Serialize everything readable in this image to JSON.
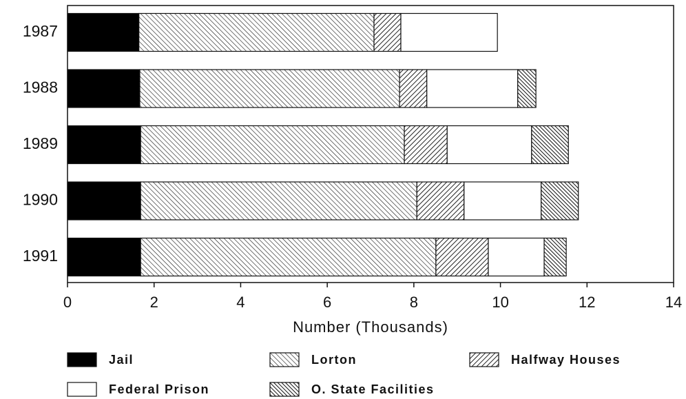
{
  "chart_data": {
    "type": "stacked-barh",
    "categories": [
      "1987",
      "1988",
      "1989",
      "1990",
      "1991"
    ],
    "series": [
      {
        "name": "Jail",
        "values": [
          1.65,
          1.67,
          1.69,
          1.69,
          1.69
        ]
      },
      {
        "name": "Lorton",
        "values": [
          5.43,
          6.0,
          6.09,
          6.38,
          6.82
        ]
      },
      {
        "name": "Halfway Houses",
        "values": [
          0.62,
          0.63,
          0.99,
          1.09,
          1.21
        ]
      },
      {
        "name": "Federal Prison",
        "values": [
          2.23,
          2.1,
          1.95,
          1.78,
          1.29
        ]
      },
      {
        "name": "O. State Facilities",
        "values": [
          0,
          0.42,
          0.85,
          0.86,
          0.51
        ]
      }
    ],
    "xlabel": "Number (Thousands)",
    "xlim": [
      0,
      14
    ],
    "xticks": [
      0,
      2,
      4,
      6,
      8,
      10,
      12,
      14
    ]
  }
}
